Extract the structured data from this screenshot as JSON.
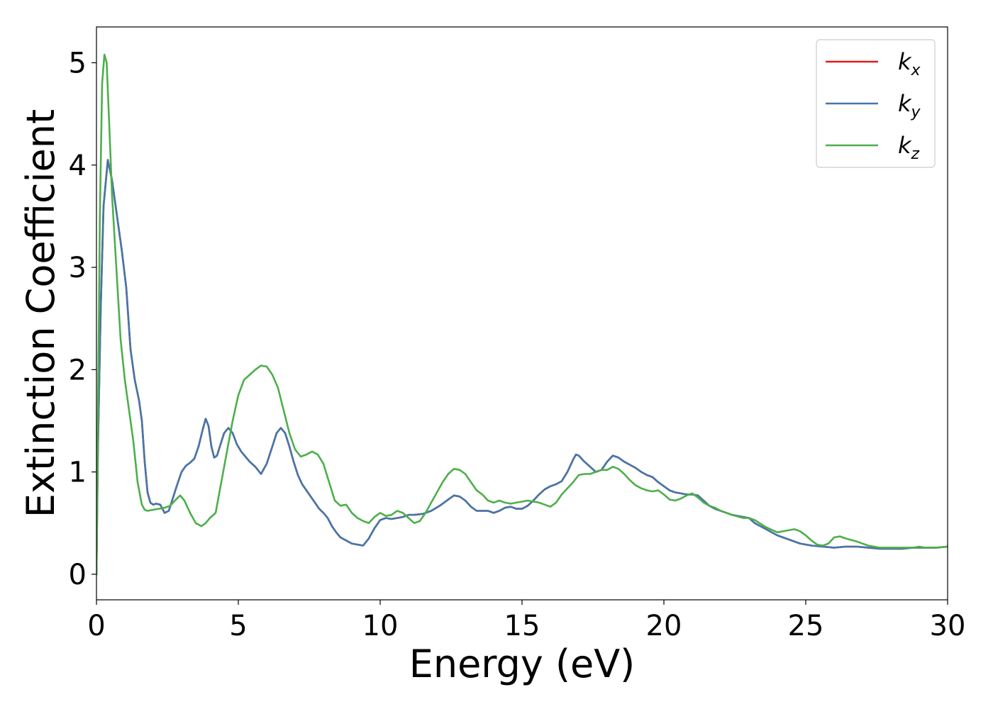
{
  "chart_data": {
    "type": "line",
    "xlabel": "Energy (eV)",
    "ylabel": "Extinction Coefficient",
    "xlim": [
      0,
      30
    ],
    "ylim": [
      -0.25,
      5.35
    ],
    "xticks": [
      0,
      5,
      10,
      15,
      20,
      25,
      30
    ],
    "yticks": [
      0,
      1,
      2,
      3,
      4,
      5
    ],
    "grid": false,
    "legend_position": "top-right",
    "series": [
      {
        "name": "k_x",
        "legend_main": "k",
        "legend_sub": "x",
        "color": "#e41a1c",
        "x": [
          0,
          0.05,
          0.15,
          0.25,
          0.4,
          0.55,
          0.75,
          0.9,
          1.05,
          1.2,
          1.35,
          1.5,
          1.6,
          1.7,
          1.8,
          1.9,
          2.0,
          2.1,
          2.25,
          2.4,
          2.55,
          2.7,
          2.85,
          3.0,
          3.15,
          3.3,
          3.45,
          3.6,
          3.75,
          3.85,
          3.95,
          4.05,
          4.15,
          4.25,
          4.35,
          4.5,
          4.65,
          4.8,
          4.95,
          5.1,
          5.25,
          5.4,
          5.6,
          5.8,
          6.0,
          6.2,
          6.35,
          6.5,
          6.65,
          6.8,
          6.95,
          7.1,
          7.25,
          7.4,
          7.55,
          7.7,
          7.85,
          8.0,
          8.15,
          8.3,
          8.45,
          8.6,
          8.8,
          9.0,
          9.2,
          9.4,
          9.6,
          9.8,
          10.0,
          10.2,
          10.4,
          10.6,
          10.8,
          11.0,
          11.2,
          11.5,
          11.8,
          12.1,
          12.4,
          12.6,
          12.8,
          13.0,
          13.2,
          13.4,
          13.6,
          13.8,
          14.0,
          14.2,
          14.4,
          14.6,
          14.8,
          15.0,
          15.2,
          15.4,
          15.6,
          15.8,
          16.0,
          16.2,
          16.4,
          16.6,
          16.8,
          16.9,
          17.0,
          17.2,
          17.4,
          17.6,
          17.8,
          18.0,
          18.2,
          18.4,
          18.6,
          18.8,
          19.0,
          19.2,
          19.4,
          19.6,
          19.8,
          20.0,
          20.2,
          20.4,
          20.6,
          20.8,
          21.0,
          21.2,
          21.4,
          21.6,
          21.8,
          22.0,
          22.4,
          22.8,
          23.0,
          23.2,
          23.6,
          24.0,
          24.4,
          24.8,
          25.2,
          25.6,
          26.0,
          26.4,
          26.8,
          27.2,
          27.6,
          28.0,
          28.4,
          28.8,
          29.2,
          29.6,
          30.0
        ],
        "y": [
          0.0,
          1.2,
          2.6,
          3.6,
          4.05,
          3.85,
          3.45,
          3.15,
          2.8,
          2.2,
          1.9,
          1.7,
          1.5,
          1.1,
          0.8,
          0.7,
          0.68,
          0.69,
          0.68,
          0.6,
          0.62,
          0.75,
          0.88,
          1.0,
          1.06,
          1.09,
          1.13,
          1.25,
          1.42,
          1.52,
          1.45,
          1.25,
          1.14,
          1.16,
          1.25,
          1.38,
          1.43,
          1.38,
          1.27,
          1.2,
          1.15,
          1.1,
          1.05,
          0.98,
          1.08,
          1.25,
          1.38,
          1.43,
          1.38,
          1.25,
          1.1,
          0.97,
          0.88,
          0.82,
          0.76,
          0.7,
          0.64,
          0.6,
          0.55,
          0.47,
          0.41,
          0.36,
          0.33,
          0.3,
          0.29,
          0.28,
          0.35,
          0.45,
          0.53,
          0.55,
          0.54,
          0.55,
          0.56,
          0.58,
          0.58,
          0.59,
          0.62,
          0.67,
          0.73,
          0.77,
          0.76,
          0.72,
          0.66,
          0.62,
          0.62,
          0.62,
          0.6,
          0.62,
          0.65,
          0.66,
          0.64,
          0.64,
          0.67,
          0.72,
          0.78,
          0.83,
          0.86,
          0.88,
          0.91,
          1.0,
          1.12,
          1.17,
          1.16,
          1.1,
          1.05,
          1.0,
          1.02,
          1.1,
          1.16,
          1.14,
          1.1,
          1.07,
          1.04,
          1.0,
          0.97,
          0.95,
          0.9,
          0.86,
          0.82,
          0.8,
          0.79,
          0.78,
          0.78,
          0.77,
          0.72,
          0.67,
          0.64,
          0.62,
          0.58,
          0.56,
          0.55,
          0.5,
          0.44,
          0.38,
          0.34,
          0.3,
          0.28,
          0.27,
          0.26,
          0.27,
          0.27,
          0.26,
          0.25,
          0.25,
          0.25,
          0.26,
          0.26,
          0.26,
          0.27
        ]
      },
      {
        "name": "k_y",
        "legend_main": "k",
        "legend_sub": "y",
        "color": "#4477aa",
        "x": [
          0,
          0.05,
          0.15,
          0.25,
          0.4,
          0.55,
          0.75,
          0.9,
          1.05,
          1.2,
          1.35,
          1.5,
          1.6,
          1.7,
          1.8,
          1.9,
          2.0,
          2.1,
          2.25,
          2.4,
          2.55,
          2.7,
          2.85,
          3.0,
          3.15,
          3.3,
          3.45,
          3.6,
          3.75,
          3.85,
          3.95,
          4.05,
          4.15,
          4.25,
          4.35,
          4.5,
          4.65,
          4.8,
          4.95,
          5.1,
          5.25,
          5.4,
          5.6,
          5.8,
          6.0,
          6.2,
          6.35,
          6.5,
          6.65,
          6.8,
          6.95,
          7.1,
          7.25,
          7.4,
          7.55,
          7.7,
          7.85,
          8.0,
          8.15,
          8.3,
          8.45,
          8.6,
          8.8,
          9.0,
          9.2,
          9.4,
          9.6,
          9.8,
          10.0,
          10.2,
          10.4,
          10.6,
          10.8,
          11.0,
          11.2,
          11.5,
          11.8,
          12.1,
          12.4,
          12.6,
          12.8,
          13.0,
          13.2,
          13.4,
          13.6,
          13.8,
          14.0,
          14.2,
          14.4,
          14.6,
          14.8,
          15.0,
          15.2,
          15.4,
          15.6,
          15.8,
          16.0,
          16.2,
          16.4,
          16.6,
          16.8,
          16.9,
          17.0,
          17.2,
          17.4,
          17.6,
          17.8,
          18.0,
          18.2,
          18.4,
          18.6,
          18.8,
          19.0,
          19.2,
          19.4,
          19.6,
          19.8,
          20.0,
          20.2,
          20.4,
          20.6,
          20.8,
          21.0,
          21.2,
          21.4,
          21.6,
          21.8,
          22.0,
          22.4,
          22.8,
          23.0,
          23.2,
          23.6,
          24.0,
          24.4,
          24.8,
          25.2,
          25.6,
          26.0,
          26.4,
          26.8,
          27.2,
          27.6,
          28.0,
          28.4,
          28.8,
          29.2,
          29.6,
          30.0
        ],
        "y": [
          0.0,
          1.2,
          2.6,
          3.6,
          4.05,
          3.85,
          3.45,
          3.15,
          2.8,
          2.2,
          1.9,
          1.7,
          1.5,
          1.1,
          0.8,
          0.7,
          0.68,
          0.69,
          0.68,
          0.6,
          0.62,
          0.75,
          0.88,
          1.0,
          1.06,
          1.09,
          1.13,
          1.25,
          1.42,
          1.52,
          1.45,
          1.25,
          1.14,
          1.16,
          1.25,
          1.38,
          1.43,
          1.38,
          1.27,
          1.2,
          1.15,
          1.1,
          1.05,
          0.98,
          1.08,
          1.25,
          1.38,
          1.43,
          1.38,
          1.25,
          1.1,
          0.97,
          0.88,
          0.82,
          0.76,
          0.7,
          0.64,
          0.6,
          0.55,
          0.47,
          0.41,
          0.36,
          0.33,
          0.3,
          0.29,
          0.28,
          0.35,
          0.45,
          0.53,
          0.55,
          0.54,
          0.55,
          0.56,
          0.58,
          0.58,
          0.59,
          0.62,
          0.67,
          0.73,
          0.77,
          0.76,
          0.72,
          0.66,
          0.62,
          0.62,
          0.62,
          0.6,
          0.62,
          0.65,
          0.66,
          0.64,
          0.64,
          0.67,
          0.72,
          0.78,
          0.83,
          0.86,
          0.88,
          0.91,
          1.0,
          1.12,
          1.17,
          1.16,
          1.1,
          1.05,
          1.0,
          1.02,
          1.1,
          1.16,
          1.14,
          1.1,
          1.07,
          1.04,
          1.0,
          0.97,
          0.95,
          0.9,
          0.86,
          0.82,
          0.8,
          0.79,
          0.78,
          0.78,
          0.77,
          0.72,
          0.67,
          0.64,
          0.62,
          0.58,
          0.56,
          0.55,
          0.5,
          0.44,
          0.38,
          0.34,
          0.3,
          0.28,
          0.27,
          0.26,
          0.27,
          0.27,
          0.26,
          0.25,
          0.25,
          0.25,
          0.26,
          0.26,
          0.26,
          0.27
        ]
      },
      {
        "name": "k_z",
        "legend_main": "k",
        "legend_sub": "z",
        "color": "#4daf4a",
        "x": [
          0,
          0.05,
          0.12,
          0.2,
          0.28,
          0.36,
          0.45,
          0.55,
          0.7,
          0.85,
          1.0,
          1.15,
          1.3,
          1.45,
          1.6,
          1.7,
          1.8,
          2.0,
          2.2,
          2.4,
          2.6,
          2.8,
          2.95,
          3.1,
          3.3,
          3.5,
          3.7,
          3.85,
          4.0,
          4.2,
          4.4,
          4.6,
          4.8,
          5.0,
          5.2,
          5.4,
          5.6,
          5.8,
          6.0,
          6.2,
          6.4,
          6.6,
          6.8,
          7.0,
          7.2,
          7.4,
          7.6,
          7.8,
          8.0,
          8.2,
          8.4,
          8.6,
          8.8,
          9.0,
          9.2,
          9.4,
          9.6,
          9.8,
          10.0,
          10.2,
          10.4,
          10.6,
          10.8,
          11.0,
          11.2,
          11.4,
          11.6,
          11.8,
          12.0,
          12.2,
          12.4,
          12.6,
          12.8,
          13.0,
          13.2,
          13.4,
          13.6,
          13.8,
          14.0,
          14.2,
          14.4,
          14.6,
          14.8,
          15.0,
          15.2,
          15.4,
          15.6,
          15.8,
          16.0,
          16.2,
          16.4,
          16.6,
          16.8,
          17.0,
          17.2,
          17.4,
          17.6,
          17.8,
          18.0,
          18.2,
          18.4,
          18.6,
          18.8,
          19.0,
          19.2,
          19.4,
          19.6,
          19.8,
          20.0,
          20.2,
          20.4,
          20.6,
          20.8,
          21.0,
          21.2,
          21.4,
          21.6,
          21.8,
          22.0,
          22.4,
          22.8,
          23.0,
          23.2,
          23.6,
          24.0,
          24.4,
          24.6,
          24.8,
          25.0,
          25.2,
          25.4,
          25.6,
          25.8,
          26.0,
          26.2,
          26.4,
          26.8,
          27.2,
          27.6,
          28.0,
          28.4,
          28.8,
          29.0,
          29.2,
          29.6,
          30.0
        ],
        "y": [
          0.0,
          1.5,
          3.5,
          4.8,
          5.08,
          5.0,
          4.4,
          3.7,
          3.0,
          2.3,
          1.9,
          1.6,
          1.3,
          0.9,
          0.68,
          0.63,
          0.62,
          0.63,
          0.64,
          0.65,
          0.67,
          0.73,
          0.77,
          0.72,
          0.6,
          0.5,
          0.47,
          0.5,
          0.55,
          0.6,
          0.9,
          1.2,
          1.5,
          1.75,
          1.9,
          1.95,
          2.0,
          2.04,
          2.03,
          1.95,
          1.82,
          1.6,
          1.38,
          1.22,
          1.15,
          1.17,
          1.2,
          1.17,
          1.08,
          0.9,
          0.72,
          0.67,
          0.68,
          0.6,
          0.55,
          0.52,
          0.5,
          0.56,
          0.6,
          0.57,
          0.58,
          0.62,
          0.6,
          0.55,
          0.5,
          0.52,
          0.6,
          0.7,
          0.8,
          0.9,
          0.98,
          1.03,
          1.02,
          0.98,
          0.9,
          0.82,
          0.78,
          0.72,
          0.7,
          0.72,
          0.7,
          0.69,
          0.7,
          0.71,
          0.72,
          0.71,
          0.7,
          0.68,
          0.66,
          0.7,
          0.78,
          0.84,
          0.9,
          0.97,
          0.98,
          0.98,
          1.0,
          1.02,
          1.02,
          1.05,
          1.03,
          0.98,
          0.92,
          0.87,
          0.84,
          0.82,
          0.81,
          0.82,
          0.78,
          0.73,
          0.72,
          0.74,
          0.77,
          0.79,
          0.75,
          0.7,
          0.67,
          0.65,
          0.62,
          0.58,
          0.55,
          0.55,
          0.53,
          0.46,
          0.41,
          0.43,
          0.44,
          0.42,
          0.38,
          0.33,
          0.29,
          0.28,
          0.3,
          0.36,
          0.37,
          0.35,
          0.32,
          0.28,
          0.26,
          0.26,
          0.26,
          0.26,
          0.27,
          0.26,
          0.26,
          0.27
        ]
      }
    ]
  }
}
